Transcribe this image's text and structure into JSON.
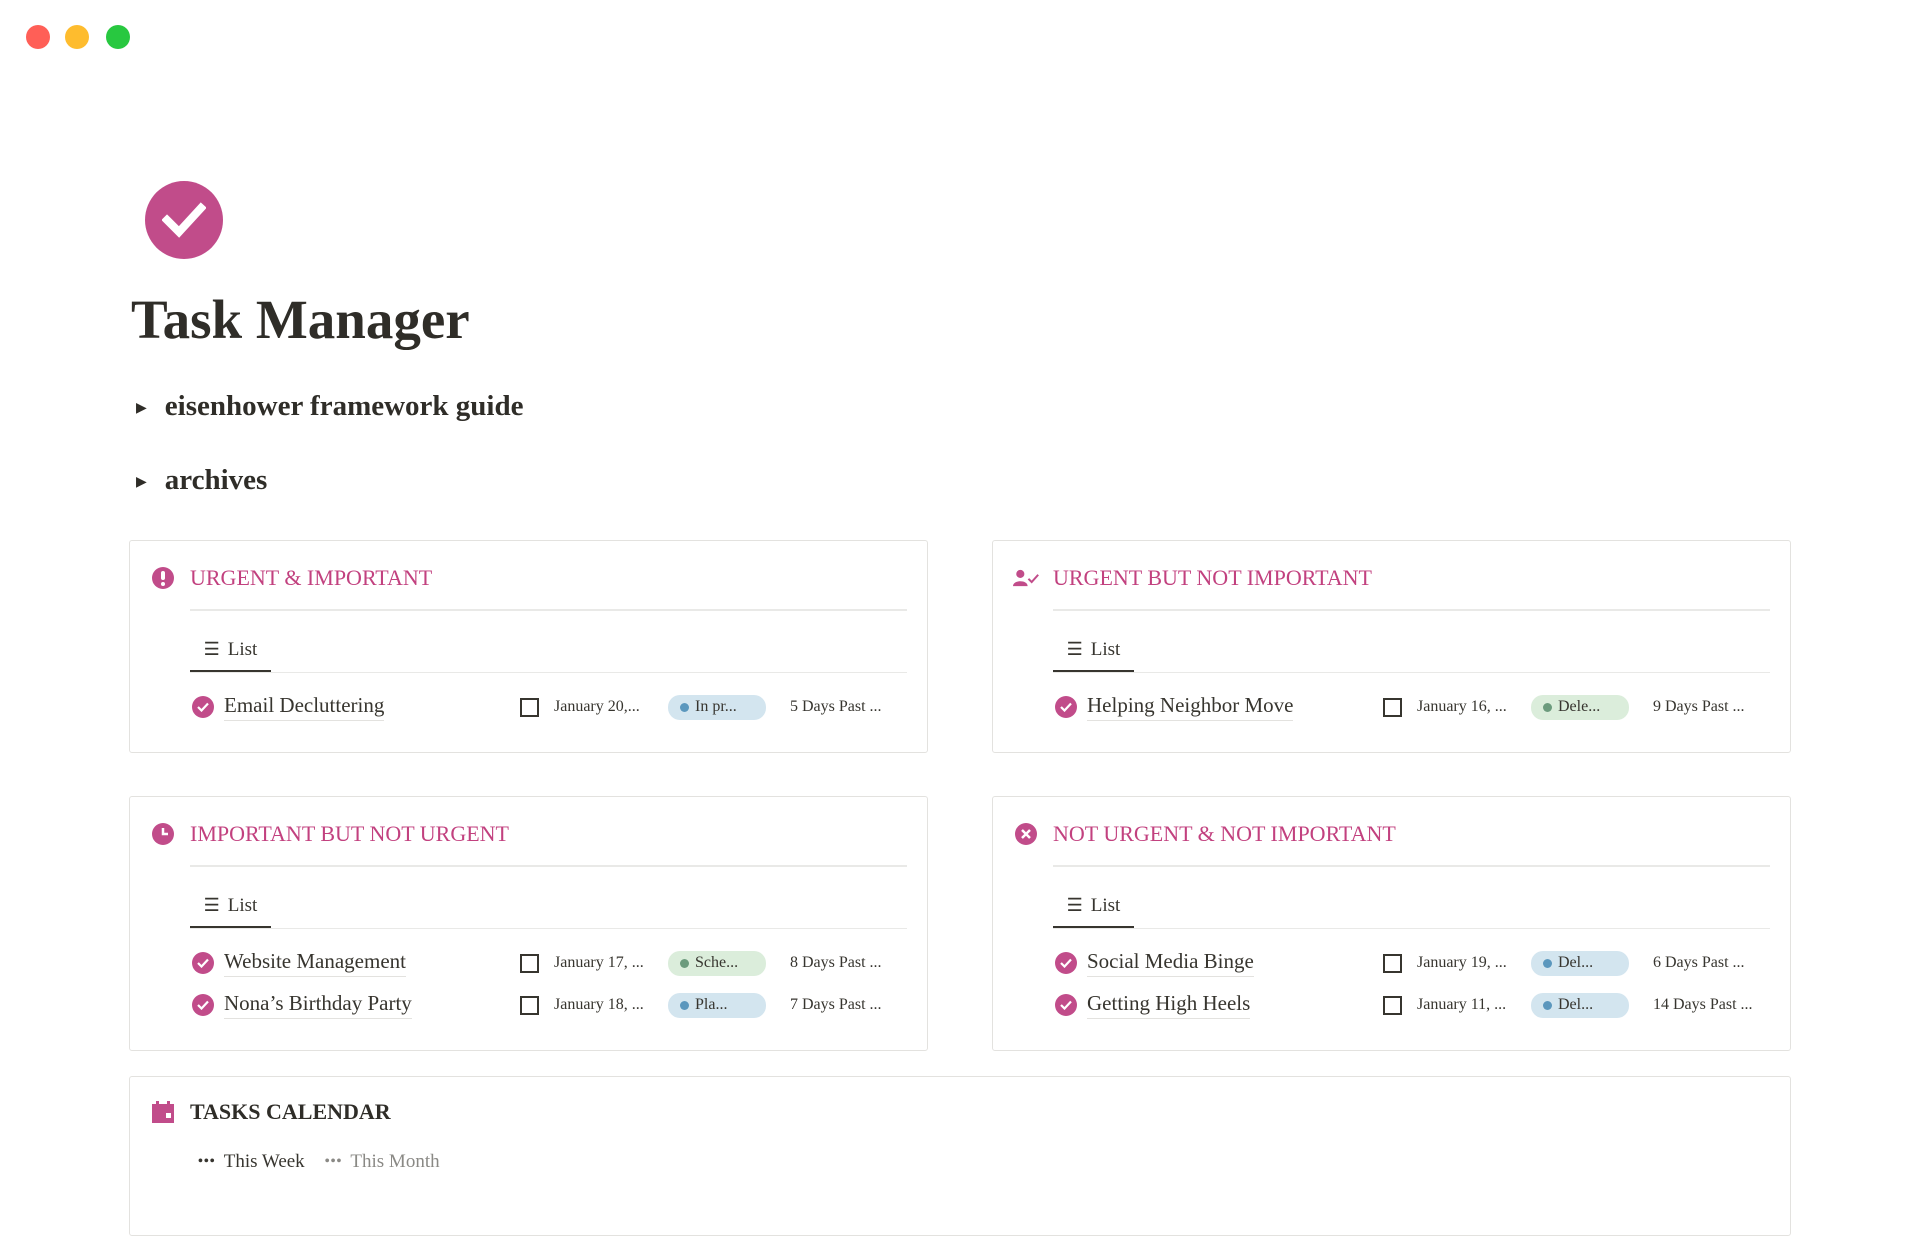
{
  "window": {
    "controls": [
      {
        "name": "close",
        "color": "#ff5f57"
      },
      {
        "name": "minimize",
        "color": "#febc2e"
      },
      {
        "name": "maximize",
        "color": "#28c840"
      }
    ]
  },
  "page": {
    "title": "Task Manager",
    "icon": "check-circle-icon",
    "accent": "#c14c8a"
  },
  "toggles": [
    {
      "label": "eisenhower framework guide"
    },
    {
      "label": "archives"
    }
  ],
  "quadrants": [
    {
      "title": "URGENT & IMPORTANT",
      "icon": "exclamation-circle-icon",
      "view": "List",
      "rows": [
        {
          "name": "Email Decluttering",
          "date": "January 20,...",
          "status": "In pr...",
          "status_bg": "#d3e5ef",
          "dot": "#5b97bd",
          "days": "5 Days Past ..."
        }
      ]
    },
    {
      "title": "URGENT BUT NOT IMPORTANT",
      "icon": "person-check-icon",
      "view": "List",
      "rows": [
        {
          "name": "Helping Neighbor Move",
          "date": "January 16, ...",
          "status": "Dele...",
          "status_bg": "#dbeddb",
          "dot": "#6c9b7d",
          "days": "9 Days Past ..."
        }
      ]
    },
    {
      "title": "IMPORTANT BUT NOT URGENT",
      "icon": "clock-icon",
      "view": "List",
      "rows": [
        {
          "name": "Website Management",
          "date": "January 17, ...",
          "status": "Sche...",
          "status_bg": "#dbeddb",
          "dot": "#6c9b7d",
          "days": "8 Days Past ..."
        },
        {
          "name": "Nona’s Birthday Party",
          "date": "January 18, ...",
          "status": "Pla...",
          "status_bg": "#d3e5ef",
          "dot": "#5b97bd",
          "days": "7 Days Past ..."
        }
      ]
    },
    {
      "title": "NOT URGENT & NOT IMPORTANT",
      "icon": "x-circle-icon",
      "view": "List",
      "rows": [
        {
          "name": "Social Media Binge",
          "date": "January 19, ...",
          "status": "Del...",
          "status_bg": "#d3e5ef",
          "dot": "#5b97bd",
          "days": "6 Days Past ..."
        },
        {
          "name": "Getting High Heels",
          "date": "January 11, ...",
          "status": "Del...",
          "status_bg": "#d3e5ef",
          "dot": "#5b97bd",
          "days": "14 Days Past ..."
        }
      ]
    }
  ],
  "calendar": {
    "title": "TASKS CALENDAR",
    "icon": "calendar-icon",
    "views": [
      {
        "label": "This Week",
        "active": true
      },
      {
        "label": "This Month",
        "active": false
      }
    ]
  }
}
